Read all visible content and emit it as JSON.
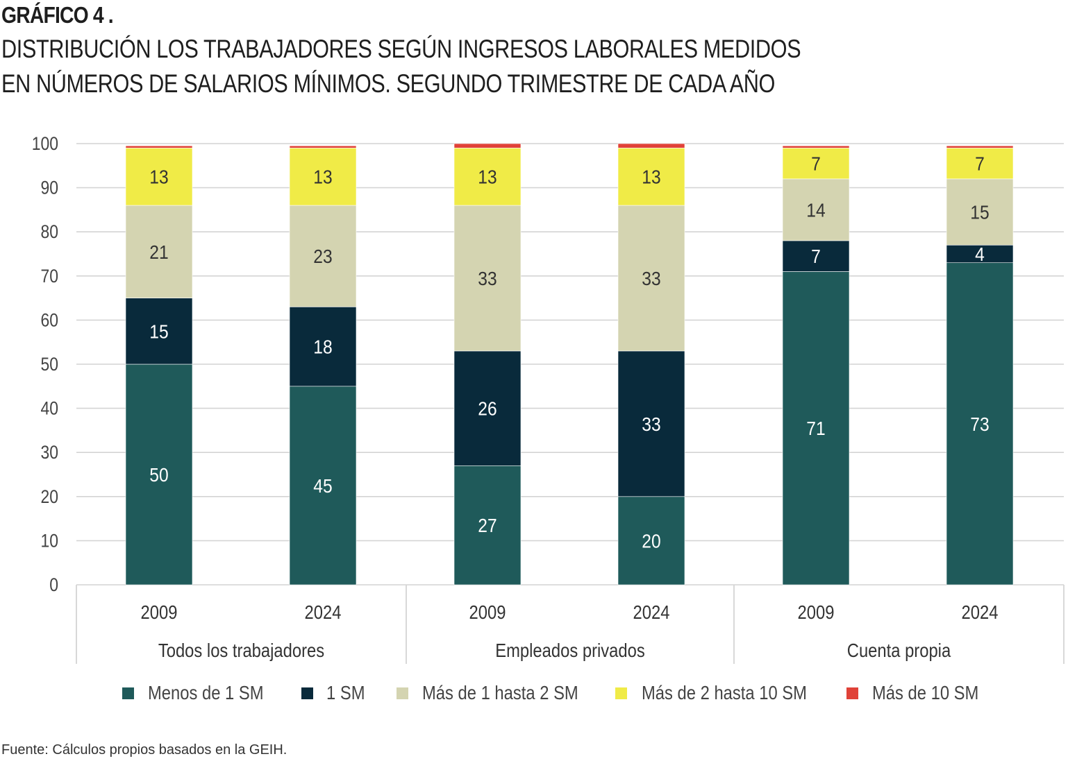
{
  "header": {
    "number": "GRÁFICO 4 .",
    "title_lines": [
      "DISTRIBUCIÓN LOS TRABAJADORES SEGÚN INGRESOS LABORALES MEDIDOS",
      "EN NÚMEROS DE SALARIOS MÍNIMOS. SEGUNDO TRIMESTRE DE CADA AÑO"
    ]
  },
  "footer": {
    "source": "Fuente: Cálculos propios basados en la GEIH."
  },
  "colors": {
    "menos_1sm": "#1f5a5a",
    "uno_sm": "#092a3b",
    "mas_1_2sm": "#d4d4b1",
    "mas_2_10sm": "#f0eb47",
    "mas_10sm": "#e04238",
    "grid": "#d4d4d4",
    "axis_text": "#444444"
  },
  "chart_data": {
    "type": "bar",
    "stacked": true,
    "title": "DISTRIBUCIÓN LOS TRABAJADORES SEGÚN INGRESOS LABORALES MEDIDOS EN NÚMEROS DE SALARIOS MÍNIMOS. SEGUNDO TRIMESTRE DE CADA AÑO",
    "groups": [
      {
        "name": "Todos los trabajadores",
        "categories": [
          "2009",
          "2024"
        ]
      },
      {
        "name": "Empleados privados",
        "categories": [
          "2009",
          "2024"
        ]
      },
      {
        "name": "Cuenta propia",
        "categories": [
          "2009",
          "2024"
        ]
      }
    ],
    "categories": [
      "2009",
      "2024",
      "2009",
      "2024",
      "2009",
      "2024"
    ],
    "series": [
      {
        "name": "Menos de 1 SM",
        "color_key": "menos_1sm",
        "label_color": "#ffffff",
        "values": [
          50,
          45,
          27,
          20,
          71,
          73
        ]
      },
      {
        "name": "1 SM",
        "color_key": "uno_sm",
        "label_color": "#ffffff",
        "values": [
          15,
          18,
          26,
          33,
          7,
          4
        ]
      },
      {
        "name": "Más de 1 hasta 2 SM",
        "color_key": "mas_1_2sm",
        "label_color": "#333333",
        "values": [
          21,
          23,
          33,
          33,
          14,
          15
        ]
      },
      {
        "name": "Más de 2 hasta 10 SM",
        "color_key": "mas_2_10sm",
        "label_color": "#333333",
        "values": [
          13,
          13,
          13,
          13,
          7,
          7
        ]
      },
      {
        "name": "Más de 10 SM",
        "color_key": "mas_10sm",
        "label_color": "#333333",
        "values": [
          0.5,
          0.5,
          1,
          1,
          0.5,
          0.5
        ],
        "show_labels": false
      }
    ],
    "ylim": [
      0,
      100
    ],
    "yticks": [
      0,
      10,
      20,
      30,
      40,
      50,
      60,
      70,
      80,
      90,
      100
    ],
    "grid": true,
    "legend": "bottom"
  }
}
